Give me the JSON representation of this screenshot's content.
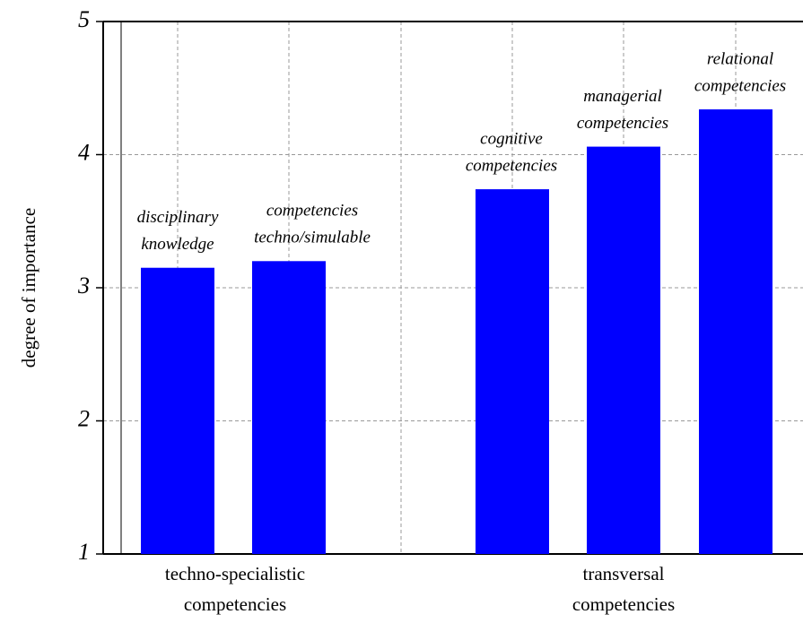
{
  "chart_data": {
    "type": "bar",
    "y_label": "degree of importance",
    "categories": [
      [
        "disciplinary",
        "knowledge"
      ],
      [
        "competencies",
        "techno/simulable"
      ],
      [
        "cognitive",
        "competencies"
      ],
      [
        "managerial",
        "competencies"
      ],
      [
        "relational",
        "competencies"
      ]
    ],
    "values": [
      3.15,
      3.2,
      3.74,
      4.06,
      4.34
    ],
    "color": "#0000ff",
    "groups": [
      [
        "techno-specialistic",
        "competencies"
      ],
      [
        "transversal",
        "competencies"
      ]
    ],
    "ylim": [
      1,
      5
    ],
    "yticks": [
      1,
      2,
      3,
      4,
      5
    ],
    "grid": true
  }
}
